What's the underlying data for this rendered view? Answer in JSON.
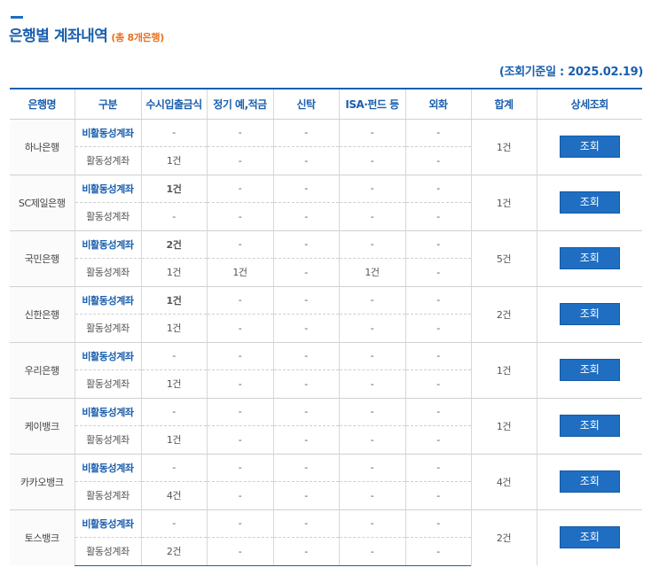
{
  "header": {
    "title": "은행별 계좌내역",
    "subtitle": "(총 8개은행)",
    "query_date": "(조회기준일 : 2025.02.19)"
  },
  "table": {
    "columns": [
      "은행명",
      "구분",
      "수시입출금식",
      "정기 예,적금",
      "신탁",
      "ISA·펀드 등",
      "외화",
      "합계",
      "상세조회"
    ],
    "button_label": "조회",
    "banks": [
      {
        "name": "하나은행",
        "total": "1건",
        "rows": [
          {
            "type": "비활동성계좌",
            "cells": [
              "-",
              "-",
              "-",
              "-",
              "-"
            ]
          },
          {
            "type": "활동성계좌",
            "cells": [
              "1건",
              "-",
              "-",
              "-",
              "-"
            ]
          }
        ]
      },
      {
        "name": "SC제일은행",
        "total": "1건",
        "rows": [
          {
            "type": "비활동성계좌",
            "cells": [
              "1건",
              "-",
              "-",
              "-",
              "-"
            ]
          },
          {
            "type": "활동성계좌",
            "cells": [
              "-",
              "-",
              "-",
              "-",
              "-"
            ]
          }
        ]
      },
      {
        "name": "국민은행",
        "total": "5건",
        "rows": [
          {
            "type": "비활동성계좌",
            "cells": [
              "2건",
              "-",
              "-",
              "-",
              "-"
            ]
          },
          {
            "type": "활동성계좌",
            "cells": [
              "1건",
              "1건",
              "-",
              "1건",
              "-"
            ]
          }
        ]
      },
      {
        "name": "신한은행",
        "total": "2건",
        "rows": [
          {
            "type": "비활동성계좌",
            "cells": [
              "1건",
              "-",
              "-",
              "-",
              "-"
            ]
          },
          {
            "type": "활동성계좌",
            "cells": [
              "1건",
              "-",
              "-",
              "-",
              "-"
            ]
          }
        ]
      },
      {
        "name": "우리은행",
        "total": "1건",
        "rows": [
          {
            "type": "비활동성계좌",
            "cells": [
              "-",
              "-",
              "-",
              "-",
              "-"
            ]
          },
          {
            "type": "활동성계좌",
            "cells": [
              "1건",
              "-",
              "-",
              "-",
              "-"
            ]
          }
        ]
      },
      {
        "name": "케이뱅크",
        "total": "1건",
        "rows": [
          {
            "type": "비활동성계좌",
            "cells": [
              "-",
              "-",
              "-",
              "-",
              "-"
            ]
          },
          {
            "type": "활동성계좌",
            "cells": [
              "1건",
              "-",
              "-",
              "-",
              "-"
            ]
          }
        ]
      },
      {
        "name": "카카오뱅크",
        "total": "4건",
        "rows": [
          {
            "type": "비활동성계좌",
            "cells": [
              "-",
              "-",
              "-",
              "-",
              "-"
            ]
          },
          {
            "type": "활동성계좌",
            "cells": [
              "4건",
              "-",
              "-",
              "-",
              "-"
            ]
          }
        ]
      },
      {
        "name": "토스뱅크",
        "total": "2건",
        "rows": [
          {
            "type": "비활동성계좌",
            "cells": [
              "-",
              "-",
              "-",
              "-",
              "-"
            ]
          },
          {
            "type": "활동성계좌",
            "cells": [
              "2건",
              "-",
              "-",
              "-",
              "-"
            ]
          }
        ]
      }
    ]
  },
  "colors": {
    "accent": "#1a5fae",
    "subtitle": "#e8711d",
    "button": "#1f6ec2"
  }
}
